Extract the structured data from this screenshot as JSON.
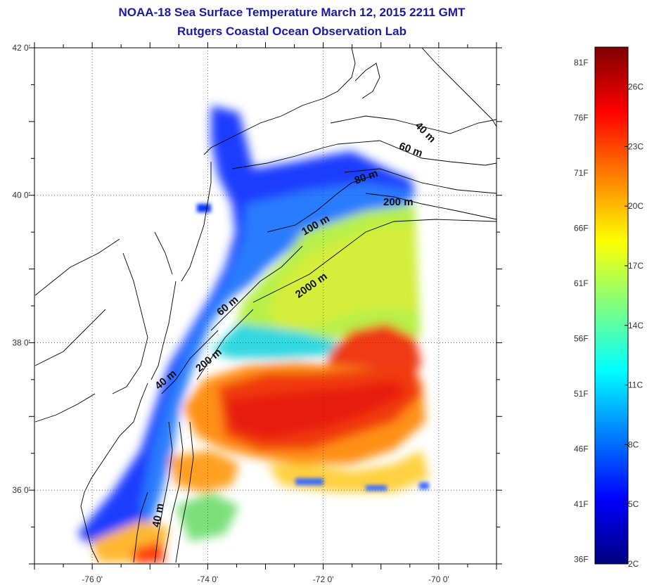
{
  "title": "NOAA-18 Sea Surface Temperature March 12, 2015 2211 GMT",
  "subtitle": "Rutgers Coastal Ocean Observation Lab",
  "map": {
    "lon_range": [
      -77,
      -69
    ],
    "lat_range": [
      35,
      42
    ],
    "lon_ticks": [
      {
        "value": -76,
        "label": "-76 0'"
      },
      {
        "value": -74,
        "label": "-74 0'"
      },
      {
        "value": -72,
        "label": "-72 0'"
      },
      {
        "value": -70,
        "label": "-70 0'"
      }
    ],
    "lat_ticks": [
      {
        "value": 42,
        "label": "42 0'"
      },
      {
        "value": 40,
        "label": "40 0'"
      },
      {
        "value": 38,
        "label": "38 0'"
      },
      {
        "value": 36,
        "label": "36 0'"
      }
    ],
    "grid": "dotted",
    "land_color": "#ffffff",
    "coastline_color": "#000000",
    "depth_contours": [
      {
        "label": "40 m"
      },
      {
        "label": "60 m"
      },
      {
        "label": "80 m"
      },
      {
        "label": "100 m"
      },
      {
        "label": "200 m"
      },
      {
        "label": "60 m"
      },
      {
        "label": "200 m"
      },
      {
        "label": "2000 m"
      },
      {
        "label": "40 m"
      },
      {
        "label": "40 m"
      }
    ]
  },
  "colorbar": {
    "range_c": [
      2,
      28
    ],
    "colors": [
      "#00007f",
      "#0000ff",
      "#007fff",
      "#00ffff",
      "#7fff7f",
      "#ffff00",
      "#ff7f00",
      "#ff0000",
      "#7f0000"
    ],
    "fahrenheit_labels": [
      "81F",
      "76F",
      "71F",
      "66F",
      "61F",
      "56F",
      "51F",
      "46F",
      "41F",
      "36F"
    ],
    "celsius_labels": [
      "26C",
      "23C",
      "20C",
      "17C",
      "14C",
      "11C",
      "8C",
      "5C",
      "2C"
    ]
  }
}
